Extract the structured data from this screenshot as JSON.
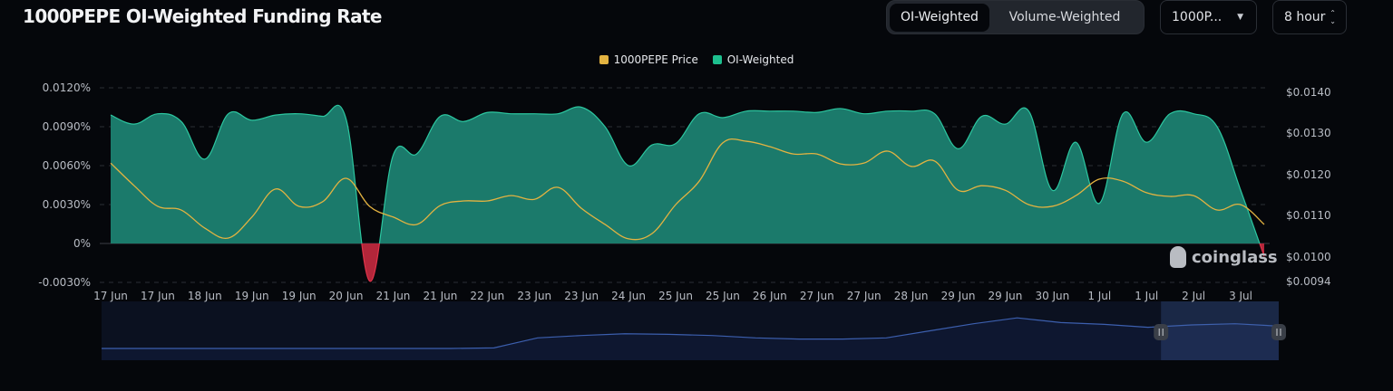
{
  "header": {
    "title": "1000PEPE OI-Weighted Funding Rate",
    "toggle": {
      "active": "OI-Weighted",
      "other": "Volume-Weighted"
    },
    "symbol_select": "1000P...",
    "interval_select": "8 hour"
  },
  "watermark": "coinglass",
  "chart_data": {
    "type": "area",
    "legend": [
      {
        "name": "1000PEPE Price",
        "color": "#e3b341"
      },
      {
        "name": "OI-Weighted",
        "color": "#1dbf8e"
      }
    ],
    "legend_placement": "top-center",
    "grid": true,
    "x_tick_labels": [
      "17 Jun",
      "17 Jun",
      "18 Jun",
      "19 Jun",
      "19 Jun",
      "20 Jun",
      "21 Jun",
      "21 Jun",
      "22 Jun",
      "23 Jun",
      "23 Jun",
      "24 Jun",
      "25 Jun",
      "25 Jun",
      "26 Jun",
      "27 Jun",
      "27 Jun",
      "28 Jun",
      "29 Jun",
      "29 Jun",
      "30 Jun",
      "1 Jul",
      "1 Jul",
      "2 Jul",
      "3 Jul"
    ],
    "y_left": {
      "ticks": [
        "0.0120%",
        "0.0090%",
        "0.0060%",
        "0.0030%",
        "0%",
        "-0.0030%"
      ],
      "range": [
        -0.003,
        0.012
      ],
      "unit": "%"
    },
    "y_right": {
      "ticks": [
        "$0.0140",
        "$0.0130",
        "$0.0120",
        "$0.0110",
        "$0.0100",
        "$0.0094"
      ],
      "range": [
        0.0094,
        0.014
      ],
      "unit": "$"
    },
    "series": [
      {
        "name": "OI-Weighted",
        "axis": "left",
        "positive_color": "#1dbf8e",
        "negative_color": "#d12d3f",
        "values": [
          0.0099,
          0.0092,
          0.01,
          0.0094,
          0.0065,
          0.01,
          0.0095,
          0.0099,
          0.01,
          0.0098,
          0.0096,
          -0.0029,
          0.0068,
          0.0069,
          0.0098,
          0.0094,
          0.0101,
          0.01,
          0.01,
          0.01,
          0.0105,
          0.009,
          0.006,
          0.0076,
          0.0077,
          0.01,
          0.0097,
          0.0102,
          0.0102,
          0.0102,
          0.0101,
          0.0104,
          0.01,
          0.0102,
          0.0102,
          0.01,
          0.0073,
          0.0098,
          0.0092,
          0.0102,
          0.0041,
          0.0078,
          0.0031,
          0.01,
          0.0078,
          0.01,
          0.01,
          0.009,
          0.0041,
          -0.001
        ]
      },
      {
        "name": "1000PEPE Price",
        "axis": "right",
        "color": "#e3b341",
        "values": [
          0.01226,
          0.01171,
          0.01121,
          0.01112,
          0.01068,
          0.01044,
          0.01095,
          0.01163,
          0.01121,
          0.01132,
          0.01189,
          0.01121,
          0.01095,
          0.01077,
          0.01123,
          0.01134,
          0.01134,
          0.01147,
          0.01138,
          0.01167,
          0.01116,
          0.01077,
          0.01042,
          0.01055,
          0.01125,
          0.01182,
          0.01275,
          0.01279,
          0.01266,
          0.01248,
          0.01248,
          0.01224,
          0.01226,
          0.01255,
          0.01218,
          0.01231,
          0.0116,
          0.01171,
          0.0116,
          0.01125,
          0.01121,
          0.01147,
          0.01187,
          0.01182,
          0.01154,
          0.01145,
          0.01147,
          0.01112,
          0.01125,
          0.01077
        ]
      }
    ],
    "navigator": {
      "levels": [
        0.2,
        0.2,
        0.2,
        0.2,
        0.2,
        0.2,
        0.2,
        0.2,
        0.2,
        0.21,
        0.38,
        0.42,
        0.45,
        0.44,
        0.42,
        0.38,
        0.36,
        0.36,
        0.38,
        0.5,
        0.62,
        0.72,
        0.64,
        0.61,
        0.56,
        0.6,
        0.62,
        0.58
      ],
      "selection": [
        0.9,
        1.0
      ]
    }
  }
}
